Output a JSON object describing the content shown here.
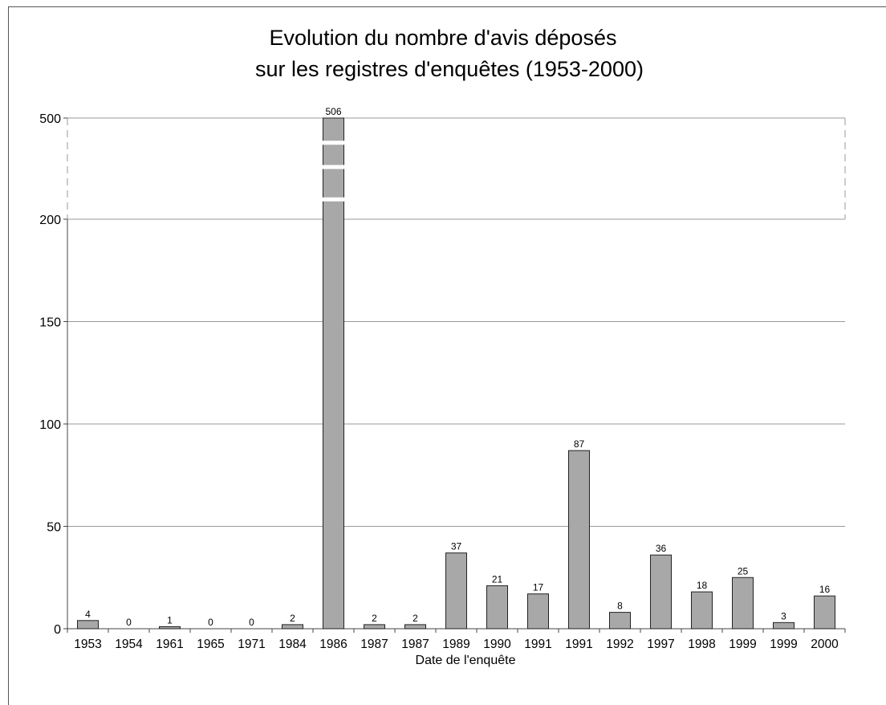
{
  "chart_data": {
    "type": "bar",
    "title_lines": [
      "Evolution du nombre d'avis déposés",
      "sur les registres d'enquêtes (1953-2000)"
    ],
    "xlabel": "Date de l'enquête",
    "ylabel": "",
    "categories": [
      "1953",
      "1954",
      "1961",
      "1965",
      "1971",
      "1984",
      "1986",
      "1987",
      "1987",
      "1989",
      "1990",
      "1991",
      "1991",
      "1992",
      "1997",
      "1998",
      "1999",
      "1999",
      "2000"
    ],
    "values": [
      4,
      0,
      1,
      0,
      0,
      2,
      506,
      2,
      2,
      37,
      21,
      17,
      87,
      8,
      36,
      18,
      25,
      3,
      16
    ],
    "y_ticks": [
      0,
      50,
      100,
      150,
      200,
      500
    ],
    "axis_break": {
      "from": 200,
      "to": 500
    },
    "ylim": [
      0,
      506
    ],
    "bar_color": "#a8a8a8",
    "grid": true
  }
}
